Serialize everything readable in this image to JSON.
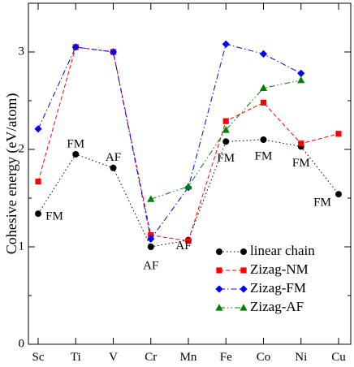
{
  "chart_data": {
    "type": "line",
    "title": "",
    "xlabel": "",
    "ylabel": "Cohesive energy (eV/atom)",
    "categories": [
      "Sc",
      "Ti",
      "V",
      "Cr",
      "Mn",
      "Fe",
      "Co",
      "Ni",
      "Cu"
    ],
    "ylim": [
      0,
      3.5
    ],
    "yticks": [
      0,
      1,
      2,
      3
    ],
    "yticklabels": [
      "0",
      "1",
      "2",
      "3"
    ],
    "grid": false,
    "legend_position": "bottom-right",
    "series": [
      {
        "name": "linear chain",
        "color": "#000000",
        "marker": "circle",
        "line_style": "dotted",
        "values": [
          1.34,
          1.95,
          1.81,
          1.0,
          1.07,
          2.08,
          2.1,
          2.03,
          1.54
        ]
      },
      {
        "name": "Zizag-NM",
        "color": "#ff0000",
        "marker": "square",
        "line_style": "dashed",
        "values": [
          1.67,
          3.05,
          3.0,
          1.12,
          1.06,
          2.29,
          2.48,
          2.06,
          2.16
        ]
      },
      {
        "name": "Zizag-FM",
        "color": "#0000ff",
        "marker": "diamond",
        "line_style": "dash-dot",
        "values": [
          2.21,
          3.05,
          3.0,
          1.08,
          1.61,
          3.08,
          2.98,
          2.78,
          null
        ]
      },
      {
        "name": "Zizag-AF",
        "color": "#008000",
        "marker": "triangle",
        "line_style": "dash-dot-dot",
        "values": [
          null,
          null,
          null,
          1.49,
          1.62,
          2.2,
          2.63,
          2.71,
          null
        ]
      }
    ],
    "annotations": [
      {
        "text": "FM",
        "category": "Sc",
        "y": 1.34
      },
      {
        "text": "FM",
        "category": "Ti",
        "y": 1.95
      },
      {
        "text": "AF",
        "category": "V",
        "y": 1.81
      },
      {
        "text": "AF",
        "category": "Cr",
        "y": 1.0
      },
      {
        "text": "AF",
        "category": "Mn",
        "y": 1.07
      },
      {
        "text": "FM",
        "category": "Fe",
        "y": 2.08
      },
      {
        "text": "FM",
        "category": "Co",
        "y": 2.1
      },
      {
        "text": "FM",
        "category": "Ni",
        "y": 2.03
      },
      {
        "text": "FM",
        "category": "Cu",
        "y": 1.54
      }
    ]
  }
}
